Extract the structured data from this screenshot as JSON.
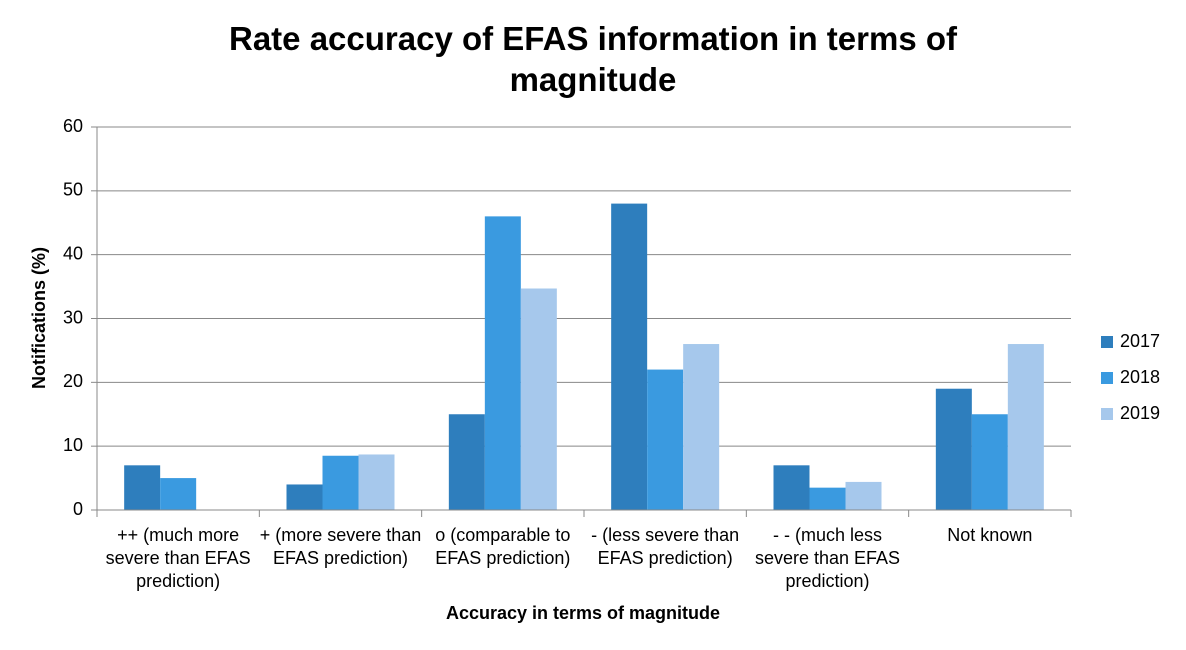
{
  "chart_data": {
    "type": "bar",
    "title": "Rate accuracy of EFAS information in terms of magnitude",
    "x_label": "Accuracy in terms of magnitude",
    "y_label": "Notifications (%)",
    "categories": [
      "++ (much more severe than EFAS prediction)",
      "+ (more severe than EFAS prediction)",
      "o (comparable to EFAS prediction)",
      "- (less severe than EFAS prediction)",
      "- - (much less severe than EFAS prediction)",
      "Not known"
    ],
    "series": [
      {
        "name": "2017",
        "color": "#2e7ebd",
        "values": [
          7,
          4,
          15,
          48,
          7,
          19
        ]
      },
      {
        "name": "2018",
        "color": "#3a9ae0",
        "values": [
          5,
          8.5,
          46,
          22,
          3.5,
          15
        ]
      },
      {
        "name": "2019",
        "color": "#a6c8ec",
        "values": [
          0,
          8.7,
          34.7,
          26,
          4.4,
          26
        ]
      }
    ],
    "ylim": [
      0,
      60
    ],
    "yticks": [
      0,
      10,
      20,
      30,
      40,
      50,
      60
    ],
    "grid": true,
    "legend": "right"
  }
}
